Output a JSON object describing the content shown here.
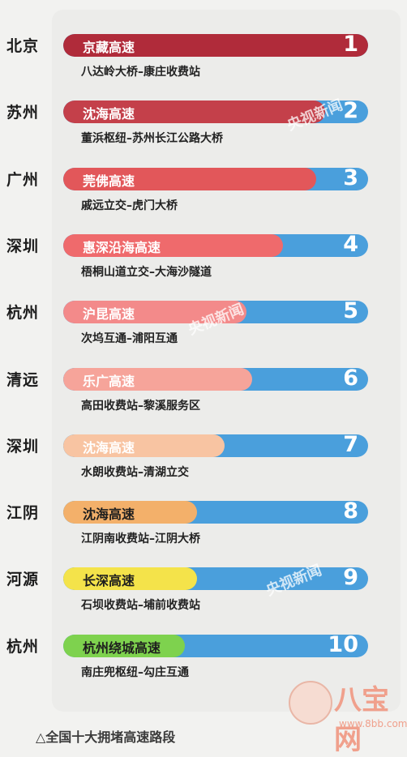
{
  "chart_data": {
    "type": "bar",
    "title": "",
    "caption": "△全国十大拥堵高速路段",
    "track_color": "#4a9fdc",
    "rows": [
      {
        "rank": "1",
        "city": "北京",
        "road": "京藏高速",
        "section": "八达岭大桥–康庄收费站",
        "fill": 1.0,
        "color": "#b02b3a",
        "dark_text": false
      },
      {
        "rank": "2",
        "city": "苏州",
        "road": "沈海高速",
        "section": "董浜枢纽–苏州长江公路大桥",
        "fill": 0.86,
        "color": "#c4404a",
        "dark_text": false
      },
      {
        "rank": "3",
        "city": "广州",
        "road": "莞佛高速",
        "section": "戚远立交–虎门大桥",
        "fill": 0.83,
        "color": "#e2575a",
        "dark_text": false
      },
      {
        "rank": "4",
        "city": "深圳",
        "road": "惠深沿海高速",
        "section": "梧桐山道立交–大海沙隧道",
        "fill": 0.72,
        "color": "#ef6a6c",
        "dark_text": false
      },
      {
        "rank": "5",
        "city": "杭州",
        "road": "沪昆高速",
        "section": "次坞互通–浦阳互通",
        "fill": 0.6,
        "color": "#f38a8a",
        "dark_text": false
      },
      {
        "rank": "6",
        "city": "清远",
        "road": "乐广高速",
        "section": "高田收费站–黎溪服务区",
        "fill": 0.62,
        "color": "#f6a49a",
        "dark_text": false
      },
      {
        "rank": "7",
        "city": "深圳",
        "road": "沈海高速",
        "section": "水朗收费站–清湖立交",
        "fill": 0.53,
        "color": "#f8c4a2",
        "dark_text": false
      },
      {
        "rank": "8",
        "city": "江阴",
        "road": "沈海高速",
        "section": "江阴南收费站–江阴大桥",
        "fill": 0.44,
        "color": "#f3b06a",
        "dark_text": true
      },
      {
        "rank": "9",
        "city": "河源",
        "road": "长深高速",
        "section": "石坝收费站–埔前收费站",
        "fill": 0.44,
        "color": "#f4e34a",
        "dark_text": true
      },
      {
        "rank": "10",
        "city": "杭州",
        "road": "杭州绕城高速",
        "section": "南庄兜枢纽–勾庄互通",
        "fill": 0.4,
        "color": "#7ed24e",
        "dark_text": true
      }
    ]
  },
  "watermark": {
    "text": "央视新闻"
  },
  "logo": {
    "text": "八宝网",
    "url": "www.8bb.com"
  }
}
